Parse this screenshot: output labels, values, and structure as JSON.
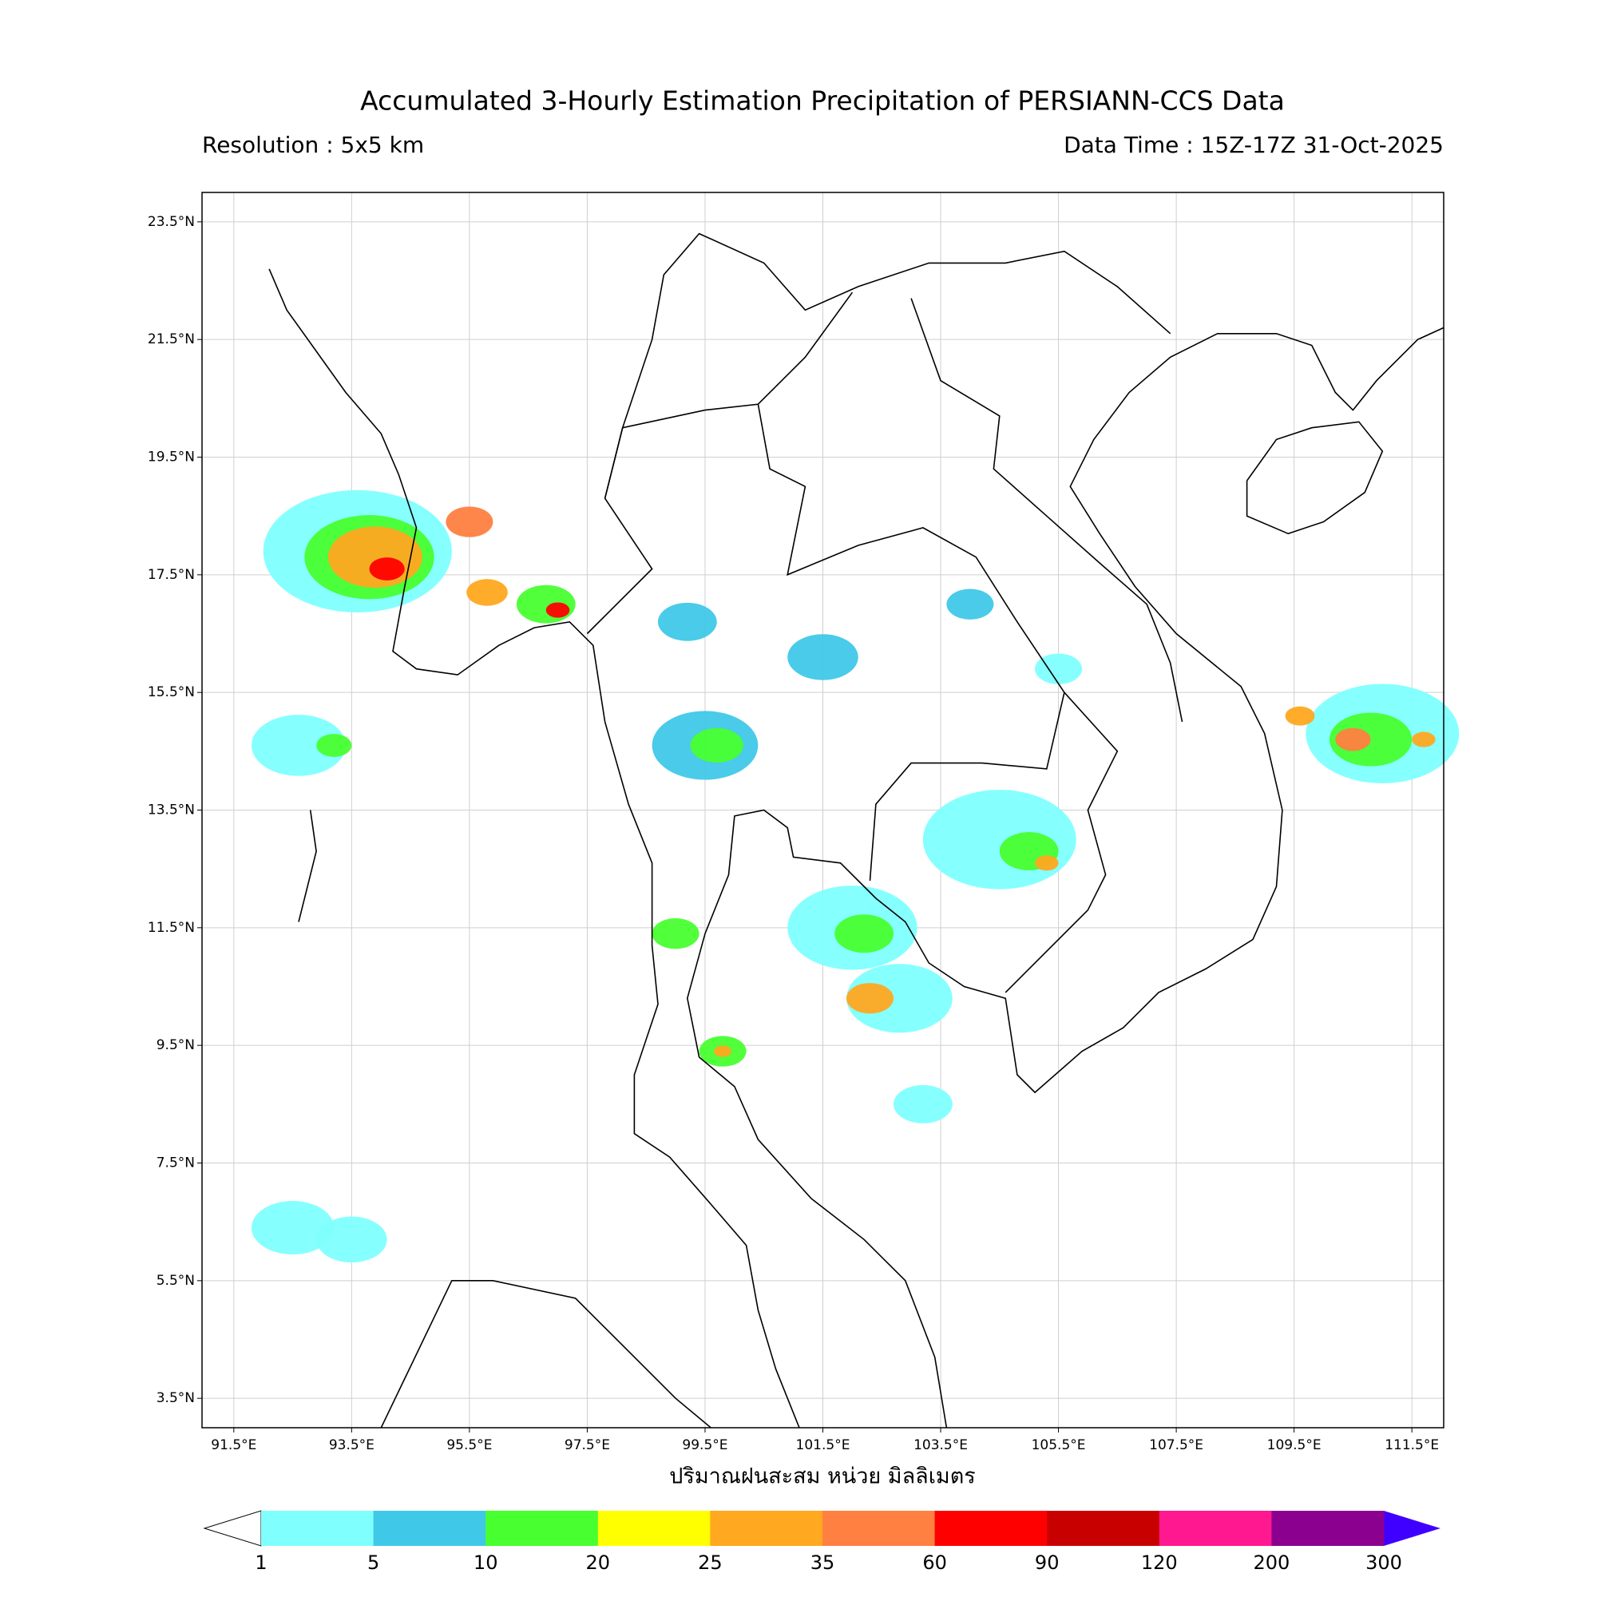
{
  "title": "Accumulated 3-Hourly Estimation Precipitation of PERSIANN-CCS Data",
  "resolution": "Resolution : 5x5 km",
  "data_time": "Data Time : 15Z-17Z 31-Oct-2025",
  "map": {
    "xlim": [
      90.96,
      112.04
    ],
    "ylim": [
      3.0,
      24.0
    ],
    "grid": true,
    "xticks": [
      {
        "value": 91.5,
        "label": "91.5°E"
      },
      {
        "value": 93.5,
        "label": "93.5°E"
      },
      {
        "value": 95.5,
        "label": "95.5°E"
      },
      {
        "value": 97.5,
        "label": "97.5°E"
      },
      {
        "value": 99.5,
        "label": "99.5°E"
      },
      {
        "value": 101.5,
        "label": "101.5°E"
      },
      {
        "value": 103.5,
        "label": "103.5°E"
      },
      {
        "value": 105.5,
        "label": "105.5°E"
      },
      {
        "value": 107.5,
        "label": "107.5°E"
      },
      {
        "value": 109.5,
        "label": "109.5°E"
      },
      {
        "value": 111.5,
        "label": "111.5°E"
      }
    ],
    "yticks": [
      {
        "value": 23.5,
        "label": "23.5°N"
      },
      {
        "value": 21.5,
        "label": "21.5°N"
      },
      {
        "value": 19.5,
        "label": "19.5°N"
      },
      {
        "value": 17.5,
        "label": "17.5°N"
      },
      {
        "value": 15.5,
        "label": "15.5°N"
      },
      {
        "value": 13.5,
        "label": "13.5°N"
      },
      {
        "value": 11.5,
        "label": "11.5°N"
      },
      {
        "value": 9.5,
        "label": "9.5°N"
      },
      {
        "value": 7.5,
        "label": "7.5°N"
      },
      {
        "value": 5.5,
        "label": "5.5°N"
      },
      {
        "value": 3.5,
        "label": "3.5°N"
      }
    ],
    "rain_cells": [
      {
        "lon": 93.6,
        "lat": 17.9,
        "extent_deg": 1.6,
        "mm": 3
      },
      {
        "lon": 93.8,
        "lat": 17.8,
        "extent_deg": 1.1,
        "mm": 12
      },
      {
        "lon": 93.9,
        "lat": 17.8,
        "extent_deg": 0.8,
        "mm": 30
      },
      {
        "lon": 94.1,
        "lat": 17.6,
        "extent_deg": 0.3,
        "mm": 70
      },
      {
        "lon": 95.5,
        "lat": 18.4,
        "extent_deg": 0.4,
        "mm": 40
      },
      {
        "lon": 96.8,
        "lat": 17.0,
        "extent_deg": 0.5,
        "mm": 15
      },
      {
        "lon": 97.0,
        "lat": 16.9,
        "extent_deg": 0.2,
        "mm": 70
      },
      {
        "lon": 95.8,
        "lat": 17.2,
        "extent_deg": 0.35,
        "mm": 30
      },
      {
        "lon": 92.6,
        "lat": 14.6,
        "extent_deg": 0.8,
        "mm": 3
      },
      {
        "lon": 93.2,
        "lat": 14.6,
        "extent_deg": 0.3,
        "mm": 15
      },
      {
        "lon": 99.5,
        "lat": 14.6,
        "extent_deg": 0.9,
        "mm": 6
      },
      {
        "lon": 99.7,
        "lat": 14.6,
        "extent_deg": 0.45,
        "mm": 15
      },
      {
        "lon": 99.2,
        "lat": 16.7,
        "extent_deg": 0.5,
        "mm": 5
      },
      {
        "lon": 101.5,
        "lat": 16.1,
        "extent_deg": 0.6,
        "mm": 5
      },
      {
        "lon": 104.0,
        "lat": 17.0,
        "extent_deg": 0.4,
        "mm": 6
      },
      {
        "lon": 104.5,
        "lat": 13.0,
        "extent_deg": 1.3,
        "mm": 3
      },
      {
        "lon": 105.0,
        "lat": 12.8,
        "extent_deg": 0.5,
        "mm": 15
      },
      {
        "lon": 105.3,
        "lat": 12.6,
        "extent_deg": 0.2,
        "mm": 30
      },
      {
        "lon": 102.0,
        "lat": 11.5,
        "extent_deg": 1.1,
        "mm": 4
      },
      {
        "lon": 102.2,
        "lat": 11.4,
        "extent_deg": 0.5,
        "mm": 12
      },
      {
        "lon": 102.8,
        "lat": 10.3,
        "extent_deg": 0.9,
        "mm": 4
      },
      {
        "lon": 102.3,
        "lat": 10.3,
        "extent_deg": 0.4,
        "mm": 25
      },
      {
        "lon": 99.8,
        "lat": 9.4,
        "extent_deg": 0.4,
        "mm": 10
      },
      {
        "lon": 99.8,
        "lat": 9.4,
        "extent_deg": 0.15,
        "mm": 30
      },
      {
        "lon": 111.0,
        "lat": 14.8,
        "extent_deg": 1.3,
        "mm": 4
      },
      {
        "lon": 110.8,
        "lat": 14.7,
        "extent_deg": 0.7,
        "mm": 12
      },
      {
        "lon": 110.5,
        "lat": 14.7,
        "extent_deg": 0.3,
        "mm": 40
      },
      {
        "lon": 111.7,
        "lat": 14.7,
        "extent_deg": 0.2,
        "mm": 30
      },
      {
        "lon": 109.6,
        "lat": 15.1,
        "extent_deg": 0.25,
        "mm": 30
      },
      {
        "lon": 92.5,
        "lat": 6.4,
        "extent_deg": 0.7,
        "mm": 2
      },
      {
        "lon": 93.5,
        "lat": 6.2,
        "extent_deg": 0.6,
        "mm": 2
      },
      {
        "lon": 103.2,
        "lat": 8.5,
        "extent_deg": 0.5,
        "mm": 2
      },
      {
        "lon": 99.0,
        "lat": 11.4,
        "extent_deg": 0.4,
        "mm": 12
      },
      {
        "lon": 105.5,
        "lat": 15.9,
        "extent_deg": 0.4,
        "mm": 4
      }
    ]
  },
  "colorbar": {
    "label": "ปริมาณฝนสะสม หน่วย มิลลิเมตร",
    "bounds": [
      1,
      5,
      10,
      20,
      25,
      35,
      60,
      90,
      120,
      200,
      300
    ],
    "colors": [
      "#80ffff",
      "#40c8e8",
      "#48ff30",
      "#ffff00",
      "#ffa820",
      "#ff8040",
      "#ff0000",
      "#c80000",
      "#ff1890",
      "#8c0090"
    ],
    "under_color": "#ffffff",
    "over_color": "#4000ff"
  }
}
